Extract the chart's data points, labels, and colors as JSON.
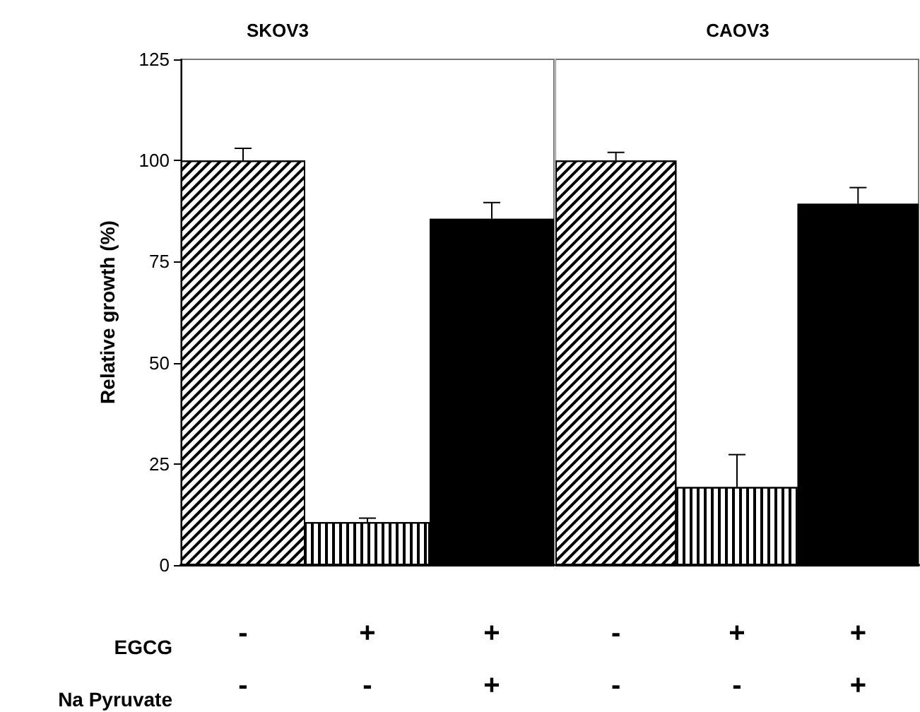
{
  "chart_data": [
    {
      "type": "bar",
      "title": "SKOV3",
      "ylabel": "Relative growth (%)",
      "categories": [
        "-\n-",
        "+\n-",
        "+\n+"
      ],
      "values": [
        100,
        10.6,
        85.6
      ],
      "errors": [
        3,
        1,
        4
      ],
      "colors": [
        "#ffffff",
        "#ffffff",
        "#000000"
      ],
      "ylim": [
        0,
        125
      ],
      "yticks": [
        0,
        25,
        50,
        75,
        100,
        125
      ],
      "annotations": [
        "EGCG",
        "Na Pyruvate"
      ]
    },
    {
      "type": "bar",
      "title": "CAOV3",
      "categories": [
        "-\n-",
        "+\n-",
        "+\n+"
      ],
      "values": [
        100,
        19.3,
        89.3
      ],
      "errors": [
        2,
        8,
        4
      ],
      "colors": [
        "#ffffff",
        "#ffffff",
        "#000000"
      ],
      "ylim": [
        0,
        125
      ],
      "yticks": [
        0,
        25,
        50,
        75,
        100,
        125
      ],
      "tick_labels": "x"
    }
  ]
}
